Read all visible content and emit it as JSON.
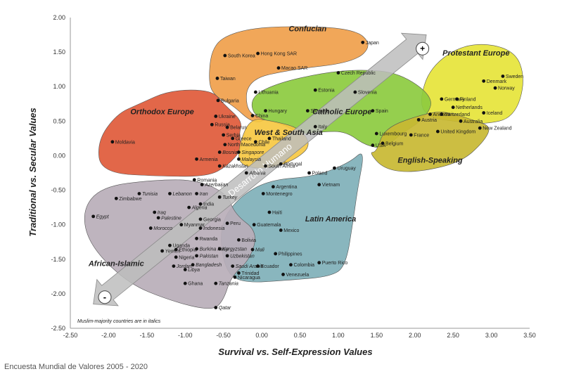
{
  "chart_data": {
    "type": "scatter",
    "xlabel": "Survival vs. Self-Expression Values",
    "ylabel": "Traditional vs. Secular Values",
    "xlim": [
      -2.5,
      3.5
    ],
    "ylim": [
      -2.5,
      2.0
    ],
    "xticks": [
      "-2.50",
      "-2.00",
      "-1.50",
      "-1.00",
      "-0.50",
      "0.00",
      "0.50",
      "1.00",
      "1.50",
      "2.00",
      "2.50",
      "3.00",
      "3.50"
    ],
    "yticks": [
      "2.00",
      "1.50",
      "1.00",
      "0.50",
      "0.00",
      "-0.50",
      "-1.00",
      "-1.50",
      "-2.00",
      "-2.50"
    ],
    "grid": false,
    "arrow_label": "Desarrollo Humano",
    "arrow_plus": "+",
    "arrow_minus": "-",
    "note": "Muslim-majority countries are in italics",
    "regions": [
      {
        "name": "Confucian",
        "color": "#f0a04b",
        "label_x": 0.6,
        "label_y": 1.8
      },
      {
        "name": "Protestant Europe",
        "color": "#e6e43a",
        "label_x": 2.8,
        "label_y": 1.45
      },
      {
        "name": "Orthodox Europe",
        "color": "#e05a3a",
        "label_x": -1.3,
        "label_y": 0.6
      },
      {
        "name": "Catholic Europe",
        "color": "#8ccb3f",
        "label_x": 1.05,
        "label_y": 0.6
      },
      {
        "name": "West & South Asia",
        "color": "#f6c842",
        "label_x": 0.35,
        "label_y": 0.3
      },
      {
        "name": "English-Speaking",
        "color": "#c8b832",
        "label_x": 2.2,
        "label_y": -0.1
      },
      {
        "name": "Latin America",
        "color": "#7fb0b8",
        "label_x": 0.9,
        "label_y": -0.95
      },
      {
        "name": "African-Islamic",
        "color": "#b9aeb8",
        "label_x": -1.9,
        "label_y": -1.6
      }
    ],
    "points": [
      {
        "name": "South Korea",
        "x": -0.48,
        "y": 1.45,
        "italic": false
      },
      {
        "name": "Hong Kong SAR",
        "x": -0.05,
        "y": 1.48,
        "italic": false
      },
      {
        "name": "Macao SAR",
        "x": 0.22,
        "y": 1.27,
        "italic": false
      },
      {
        "name": "Japan",
        "x": 1.32,
        "y": 1.64,
        "italic": false
      },
      {
        "name": "Taiwan",
        "x": -0.58,
        "y": 1.12,
        "italic": false
      },
      {
        "name": "Czech Republic",
        "x": 1.0,
        "y": 1.2,
        "italic": false
      },
      {
        "name": "Lithuania",
        "x": -0.08,
        "y": 0.92,
        "italic": false
      },
      {
        "name": "Estonia",
        "x": 0.7,
        "y": 0.95,
        "italic": false
      },
      {
        "name": "Slovenia",
        "x": 1.22,
        "y": 0.92,
        "italic": false
      },
      {
        "name": "Bulgaria",
        "x": -0.57,
        "y": 0.8,
        "italic": false
      },
      {
        "name": "Slovakia",
        "x": 0.6,
        "y": 0.65,
        "italic": false
      },
      {
        "name": "Spain",
        "x": 1.45,
        "y": 0.65,
        "italic": false
      },
      {
        "name": "Hungary",
        "x": 0.05,
        "y": 0.65,
        "italic": false
      },
      {
        "name": "China",
        "x": -0.12,
        "y": 0.58,
        "italic": false
      },
      {
        "name": "Ukraine",
        "x": -0.6,
        "y": 0.57,
        "italic": false
      },
      {
        "name": "Russia",
        "x": -0.65,
        "y": 0.45,
        "italic": false
      },
      {
        "name": "Belarus",
        "x": -0.45,
        "y": 0.41,
        "italic": false
      },
      {
        "name": "Serbia",
        "x": -0.5,
        "y": 0.3,
        "italic": false
      },
      {
        "name": "Greece",
        "x": -0.38,
        "y": 0.25,
        "italic": false
      },
      {
        "name": "North Macedonia",
        "x": -0.48,
        "y": 0.16,
        "italic": false
      },
      {
        "name": "Moldavia",
        "x": -1.95,
        "y": 0.2,
        "italic": false
      },
      {
        "name": "Armenia",
        "x": -0.85,
        "y": -0.05,
        "italic": false
      },
      {
        "name": "Italy",
        "x": 0.7,
        "y": 0.42,
        "italic": false
      },
      {
        "name": "Thailand",
        "x": 0.1,
        "y": 0.25,
        "italic": false
      },
      {
        "name": "Chile",
        "x": -0.08,
        "y": 0.2,
        "italic": false
      },
      {
        "name": "Singapore",
        "x": -0.3,
        "y": 0.05,
        "italic": true
      },
      {
        "name": "Malaysia",
        "x": -0.3,
        "y": -0.05,
        "italic": true
      },
      {
        "name": "Bosnia",
        "x": -0.55,
        "y": 0.05,
        "italic": true
      },
      {
        "name": "Kazakhstan",
        "x": -0.55,
        "y": -0.15,
        "italic": true
      },
      {
        "name": "Romania",
        "x": -0.88,
        "y": -0.35,
        "italic": false
      },
      {
        "name": "Azerbaijan",
        "x": -0.78,
        "y": -0.42,
        "italic": true
      },
      {
        "name": "Luxembourg",
        "x": 1.5,
        "y": 0.32,
        "italic": false
      },
      {
        "name": "Belgium",
        "x": 1.58,
        "y": 0.18,
        "italic": false
      },
      {
        "name": "Austria",
        "x": 2.05,
        "y": 0.52,
        "italic": false
      },
      {
        "name": "France",
        "x": 1.95,
        "y": 0.3,
        "italic": false
      },
      {
        "name": "Andorra",
        "x": 2.2,
        "y": 0.6,
        "italic": false
      },
      {
        "name": "USA",
        "x": 1.45,
        "y": 0.15,
        "italic": false
      },
      {
        "name": "Germany",
        "x": 2.35,
        "y": 0.82,
        "italic": false
      },
      {
        "name": "Finland",
        "x": 2.55,
        "y": 0.82,
        "italic": false
      },
      {
        "name": "Netherlands",
        "x": 2.5,
        "y": 0.7,
        "italic": false
      },
      {
        "name": "Switzerland",
        "x": 2.35,
        "y": 0.6,
        "italic": false
      },
      {
        "name": "Iceland",
        "x": 2.9,
        "y": 0.62,
        "italic": false
      },
      {
        "name": "Denmark",
        "x": 2.9,
        "y": 1.08,
        "italic": false
      },
      {
        "name": "Sweden",
        "x": 3.15,
        "y": 1.15,
        "italic": false
      },
      {
        "name": "Norway",
        "x": 3.05,
        "y": 0.98,
        "italic": false
      },
      {
        "name": "Australia",
        "x": 2.6,
        "y": 0.5,
        "italic": false
      },
      {
        "name": "New Zealand",
        "x": 2.85,
        "y": 0.4,
        "italic": false
      },
      {
        "name": "United Kingdom",
        "x": 2.3,
        "y": 0.35,
        "italic": false
      },
      {
        "name": "South Africa",
        "x": 0.05,
        "y": -0.15,
        "italic": false
      },
      {
        "name": "Portugal",
        "x": 0.25,
        "y": -0.12,
        "italic": false
      },
      {
        "name": "Poland",
        "x": 0.62,
        "y": -0.25,
        "italic": false
      },
      {
        "name": "Uruguay",
        "x": 0.95,
        "y": -0.18,
        "italic": false
      },
      {
        "name": "Vietnam",
        "x": 0.75,
        "y": -0.42,
        "italic": false
      },
      {
        "name": "Argentina",
        "x": 0.15,
        "y": -0.45,
        "italic": false
      },
      {
        "name": "Montenegro",
        "x": 0.02,
        "y": -0.55,
        "italic": false
      },
      {
        "name": "Albania",
        "x": -0.2,
        "y": -0.25,
        "italic": true
      },
      {
        "name": "Iran",
        "x": -0.85,
        "y": -0.55,
        "italic": true
      },
      {
        "name": "Turkey",
        "x": -0.55,
        "y": -0.6,
        "italic": true
      },
      {
        "name": "Tunisia",
        "x": -1.6,
        "y": -0.55,
        "italic": true
      },
      {
        "name": "Lebanon",
        "x": -1.2,
        "y": -0.55,
        "italic": true
      },
      {
        "name": "Zimbabwe",
        "x": -1.9,
        "y": -0.62,
        "italic": false
      },
      {
        "name": "Egypt",
        "x": -2.2,
        "y": -0.88,
        "italic": true
      },
      {
        "name": "Iraq",
        "x": -1.4,
        "y": -0.82,
        "italic": true
      },
      {
        "name": "Palestine",
        "x": -1.35,
        "y": -0.9,
        "italic": true
      },
      {
        "name": "Algeria",
        "x": -0.95,
        "y": -0.75,
        "italic": true
      },
      {
        "name": "India",
        "x": -0.8,
        "y": -0.7,
        "italic": false
      },
      {
        "name": "Morocco",
        "x": -1.45,
        "y": -1.05,
        "italic": true
      },
      {
        "name": "Myanmar",
        "x": -1.05,
        "y": -1.0,
        "italic": false
      },
      {
        "name": "Indonesia",
        "x": -0.8,
        "y": -1.05,
        "italic": true
      },
      {
        "name": "Georgia",
        "x": -0.8,
        "y": -0.92,
        "italic": false
      },
      {
        "name": "Peru",
        "x": -0.45,
        "y": -0.98,
        "italic": false
      },
      {
        "name": "Haiti",
        "x": 0.1,
        "y": -0.82,
        "italic": false
      },
      {
        "name": "Guatemala",
        "x": -0.1,
        "y": -1.0,
        "italic": false
      },
      {
        "name": "Mexico",
        "x": 0.25,
        "y": -1.08,
        "italic": false
      },
      {
        "name": "Rwanda",
        "x": -0.85,
        "y": -1.2,
        "italic": false
      },
      {
        "name": "Uganda",
        "x": -1.2,
        "y": -1.3,
        "italic": false
      },
      {
        "name": "Ethiopia",
        "x": -1.12,
        "y": -1.36,
        "italic": false
      },
      {
        "name": "Yemen",
        "x": -1.3,
        "y": -1.38,
        "italic": true
      },
      {
        "name": "Burkina Faso",
        "x": -0.85,
        "y": -1.35,
        "italic": true
      },
      {
        "name": "Nigeria",
        "x": -1.12,
        "y": -1.47,
        "italic": false
      },
      {
        "name": "Pakistan",
        "x": -0.85,
        "y": -1.45,
        "italic": true
      },
      {
        "name": "Kyrgyzstan",
        "x": -0.55,
        "y": -1.35,
        "italic": true
      },
      {
        "name": "Uzbekistan",
        "x": -0.45,
        "y": -1.45,
        "italic": true
      },
      {
        "name": "Mali",
        "x": -0.12,
        "y": -1.36,
        "italic": true
      },
      {
        "name": "Bolivia",
        "x": -0.3,
        "y": -1.22,
        "italic": false
      },
      {
        "name": "Bangladesh",
        "x": -0.9,
        "y": -1.58,
        "italic": true
      },
      {
        "name": "Libya",
        "x": -1.0,
        "y": -1.65,
        "italic": true
      },
      {
        "name": "Jordan",
        "x": -1.15,
        "y": -1.6,
        "italic": true
      },
      {
        "name": "Saudi Arabia",
        "x": -0.38,
        "y": -1.6,
        "italic": true
      },
      {
        "name": "Philippines",
        "x": 0.18,
        "y": -1.42,
        "italic": false
      },
      {
        "name": "Ecuador",
        "x": -0.05,
        "y": -1.6,
        "italic": false
      },
      {
        "name": "Colombia",
        "x": 0.38,
        "y": -1.58,
        "italic": false
      },
      {
        "name": "Puerto Rico",
        "x": 0.75,
        "y": -1.55,
        "italic": false
      },
      {
        "name": "Trinidad",
        "x": -0.3,
        "y": -1.7,
        "italic": false
      },
      {
        "name": "Nicaragua",
        "x": -0.35,
        "y": -1.76,
        "italic": false
      },
      {
        "name": "Venezuela",
        "x": 0.28,
        "y": -1.72,
        "italic": false
      },
      {
        "name": "Ghana",
        "x": -1.0,
        "y": -1.85,
        "italic": false
      },
      {
        "name": "Tanzania",
        "x": -0.6,
        "y": -1.85,
        "italic": true
      },
      {
        "name": "Qatar",
        "x": -0.6,
        "y": -2.2,
        "italic": true
      }
    ]
  },
  "footer": "Encuesta Mundial de Valores 2005 - 2020"
}
